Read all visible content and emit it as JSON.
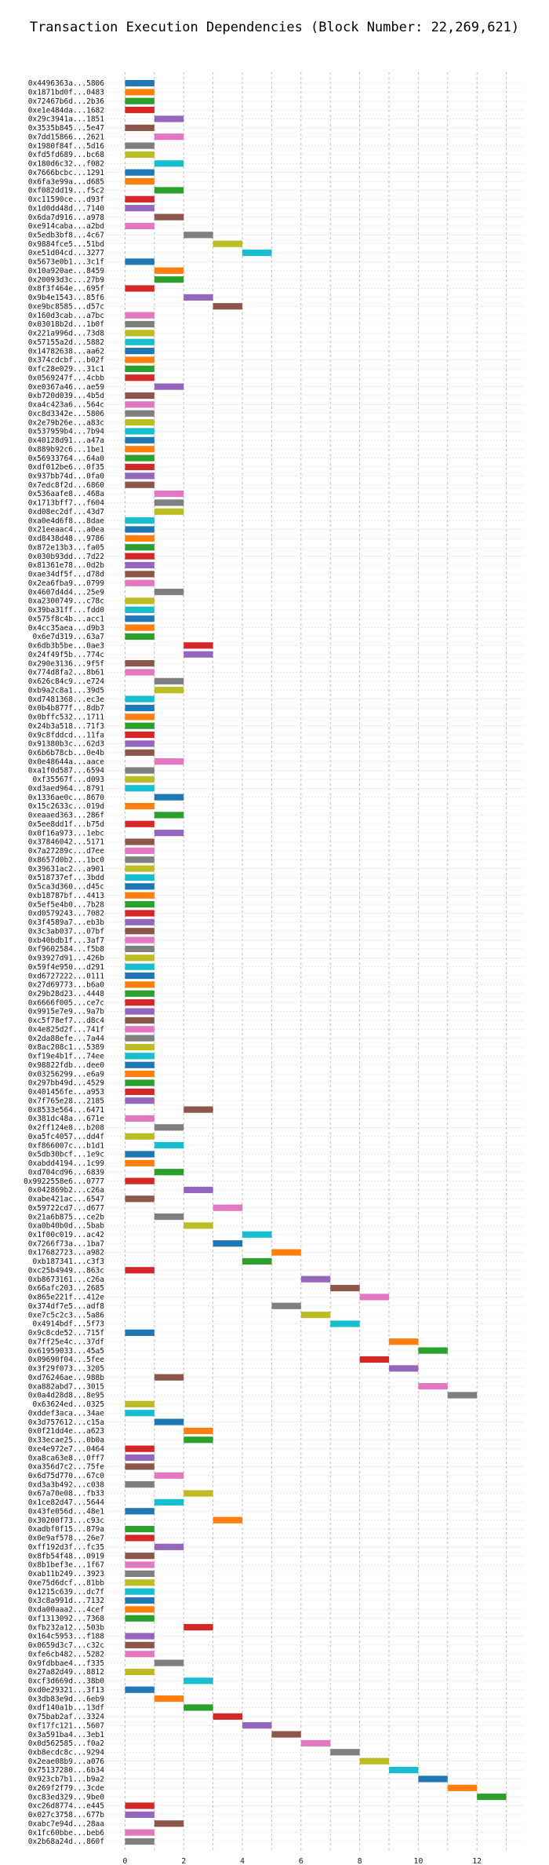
{
  "chart_data": {
    "type": "bar",
    "orientation": "horizontal-intervals",
    "title": "Transaction Execution Dependencies (Block Number: 22,269,621)",
    "xlabel": "",
    "ylabel": "",
    "xlim": [
      -0.6,
      13.6
    ],
    "xticks": [
      0,
      2,
      4,
      6,
      8,
      10,
      12
    ],
    "grid": true,
    "palette": [
      "#1f77b4",
      "#ff7f0e",
      "#2ca02c",
      "#d62728",
      "#9467bd",
      "#8c564b",
      "#e377c2",
      "#7f7f7f",
      "#bcbd22",
      "#17becf"
    ],
    "transactions": [
      {
        "hash": "0x4496363a...5806",
        "start": 0
      },
      {
        "hash": "0x1871bd0f...0483",
        "start": 0
      },
      {
        "hash": "0x72467b6d...2b36",
        "start": 0
      },
      {
        "hash": "0xe1e484da...1682",
        "start": 0
      },
      {
        "hash": "0x29c3941a...1851",
        "start": 1
      },
      {
        "hash": "0x3535b845...5e47",
        "start": 0
      },
      {
        "hash": "0x7dd15866...2621",
        "start": 1
      },
      {
        "hash": "0x1980f84f...5d16",
        "start": 0
      },
      {
        "hash": "0xfd5fd689...bc68",
        "start": 0
      },
      {
        "hash": "0x180d6c32...f082",
        "start": 1
      },
      {
        "hash": "0x7666bcbc...1291",
        "start": 0
      },
      {
        "hash": "0x6fa3e99a...d685",
        "start": 0
      },
      {
        "hash": "0xf082dd19...f5c2",
        "start": 1
      },
      {
        "hash": "0xc11590ce...d93f",
        "start": 0
      },
      {
        "hash": "0x1d0dd48d...7140",
        "start": 0
      },
      {
        "hash": "0x6da7d916...a978",
        "start": 1
      },
      {
        "hash": "0xe914caba...a2bd",
        "start": 0
      },
      {
        "hash": "0x5edb3bf8...4c67",
        "start": 2
      },
      {
        "hash": "0x9884fce5...51bd",
        "start": 3
      },
      {
        "hash": "0xe51d04cd...3277",
        "start": 4
      },
      {
        "hash": "0x5673e0b1...3c1f",
        "start": 0
      },
      {
        "hash": "0x10a920ae...8459",
        "start": 1
      },
      {
        "hash": "0x20093d3c...27b9",
        "start": 1
      },
      {
        "hash": "0x8f3f464e...695f",
        "start": 0
      },
      {
        "hash": "0x9b4e1543...85f6",
        "start": 2
      },
      {
        "hash": "0xe9bc8585...d57c",
        "start": 3
      },
      {
        "hash": "0x160d3cab...a7bc",
        "start": 0
      },
      {
        "hash": "0x03018b2d...1b0f",
        "start": 0
      },
      {
        "hash": "0x221a996d...73d8",
        "start": 0
      },
      {
        "hash": "0x57155a2d...5882",
        "start": 0
      },
      {
        "hash": "0x14782638...aa62",
        "start": 0
      },
      {
        "hash": "0x374cdcbf...b02f",
        "start": 0
      },
      {
        "hash": "0xfc28e029...31c1",
        "start": 0
      },
      {
        "hash": "0x0569247f...4cbb",
        "start": 0
      },
      {
        "hash": "0xe0367a46...ae59",
        "start": 1
      },
      {
        "hash": "0xb720d039...4b5d",
        "start": 0
      },
      {
        "hash": "0xa4c423a6...564c",
        "start": 0
      },
      {
        "hash": "0xc8d3342e...5806",
        "start": 0
      },
      {
        "hash": "0x2e79b26e...a83c",
        "start": 0
      },
      {
        "hash": "0x537959b4...7b94",
        "start": 0
      },
      {
        "hash": "0x40128d91...a47a",
        "start": 0
      },
      {
        "hash": "0x889b92c6...1be1",
        "start": 0
      },
      {
        "hash": "0x56933764...64a0",
        "start": 0
      },
      {
        "hash": "0xdf012be6...0f35",
        "start": 0
      },
      {
        "hash": "0x937bb74d...0fa0",
        "start": 0
      },
      {
        "hash": "0x7edc8f2d...6860",
        "start": 0
      },
      {
        "hash": "0x536aafe8...468a",
        "start": 1
      },
      {
        "hash": "0x1713bff7...f604",
        "start": 1
      },
      {
        "hash": "0xd08ec2df...43d7",
        "start": 1
      },
      {
        "hash": "0xa0e4d6f8...8dae",
        "start": 0
      },
      {
        "hash": "0x21eeaac4...a0ea",
        "start": 0
      },
      {
        "hash": "0xd8438d48...9786",
        "start": 0
      },
      {
        "hash": "0x872e13b3...fa05",
        "start": 0
      },
      {
        "hash": "0x030b93dd...7d22",
        "start": 0
      },
      {
        "hash": "0x81361e78...0d2b",
        "start": 0
      },
      {
        "hash": "0xae34df5f...d78d",
        "start": 0
      },
      {
        "hash": "0x2ea6fba9...0799",
        "start": 0
      },
      {
        "hash": "0x4607d4d4...25e9",
        "start": 1
      },
      {
        "hash": "0xa2300749...c78c",
        "start": 0
      },
      {
        "hash": "0x39ba31ff...fdd0",
        "start": 0
      },
      {
        "hash": "0x575f8c4b...acc1",
        "start": 0
      },
      {
        "hash": "0x4cc35aea...d9b3",
        "start": 0
      },
      {
        "hash": "0x6e7d319...63a7",
        "start": 0
      },
      {
        "hash": "0x6db3b5be...0ae3",
        "start": 2
      },
      {
        "hash": "0x24f49f5b...774c",
        "start": 2
      },
      {
        "hash": "0x290e3136...9f5f",
        "start": 0
      },
      {
        "hash": "0x774d8fa2...8b61",
        "start": 0
      },
      {
        "hash": "0x626c84c9...e724",
        "start": 1
      },
      {
        "hash": "0xb9a2c8a1...39d5",
        "start": 1
      },
      {
        "hash": "0xd7481368...ec3e",
        "start": 0
      },
      {
        "hash": "0x0b4b877f...8db7",
        "start": 0
      },
      {
        "hash": "0x0bffc532...1711",
        "start": 0
      },
      {
        "hash": "0x24b3a518...71f3",
        "start": 0
      },
      {
        "hash": "0x9c8fddcd...11fa",
        "start": 0
      },
      {
        "hash": "0x91380b3c...62d3",
        "start": 0
      },
      {
        "hash": "0x6b6b78cb...0e4b",
        "start": 0
      },
      {
        "hash": "0x0e48644a...aace",
        "start": 1
      },
      {
        "hash": "0xa1f0d587...6594",
        "start": 0
      },
      {
        "hash": "0xf35567f...d093",
        "start": 0
      },
      {
        "hash": "0xd3aed964...8791",
        "start": 0
      },
      {
        "hash": "0x1336ae0c...8670",
        "start": 1
      },
      {
        "hash": "0x15c2633c...019d",
        "start": 0
      },
      {
        "hash": "0xeaaed363...286f",
        "start": 1
      },
      {
        "hash": "0x5ee8dd1f...b75d",
        "start": 0
      },
      {
        "hash": "0x0f16a973...1ebc",
        "start": 1
      },
      {
        "hash": "0x37846042...5171",
        "start": 0
      },
      {
        "hash": "0x7a27289c...d7ee",
        "start": 0
      },
      {
        "hash": "0x8657d0b2...1bc0",
        "start": 0
      },
      {
        "hash": "0x39631ac2...a901",
        "start": 0
      },
      {
        "hash": "0x518737ef...3bdd",
        "start": 0
      },
      {
        "hash": "0x5ca3d360...d45c",
        "start": 0
      },
      {
        "hash": "0xb18787bf...4413",
        "start": 0
      },
      {
        "hash": "0x5ef5e4b0...7b28",
        "start": 0
      },
      {
        "hash": "0xd0579243...7082",
        "start": 0
      },
      {
        "hash": "0x3f4589a7...eb3b",
        "start": 0
      },
      {
        "hash": "0x3c3ab037...07bf",
        "start": 0
      },
      {
        "hash": "0xb40bdb1f...3af7",
        "start": 0
      },
      {
        "hash": "0xf9602584...f5b8",
        "start": 0
      },
      {
        "hash": "0x93927d91...426b",
        "start": 0
      },
      {
        "hash": "0x59f4e950...d291",
        "start": 0
      },
      {
        "hash": "0xd6727222...0111",
        "start": 0
      },
      {
        "hash": "0x27d69773...b6a0",
        "start": 0
      },
      {
        "hash": "0x29b28d23...4448",
        "start": 0
      },
      {
        "hash": "0x6666f005...ce7c",
        "start": 0
      },
      {
        "hash": "0x9915e7e9...9a7b",
        "start": 0
      },
      {
        "hash": "0xc5f78ef7...d8c4",
        "start": 0
      },
      {
        "hash": "0x4e825d2f...741f",
        "start": 0
      },
      {
        "hash": "0x2da88efe...7a44",
        "start": 0
      },
      {
        "hash": "0x8ac208c1...5389",
        "start": 0
      },
      {
        "hash": "0xf19e4b1f...74ee",
        "start": 0
      },
      {
        "hash": "0x98822fdb...dee0",
        "start": 0
      },
      {
        "hash": "0x03256299...e6a9",
        "start": 0
      },
      {
        "hash": "0x297bb49d...4529",
        "start": 0
      },
      {
        "hash": "0x401456fe...a953",
        "start": 0
      },
      {
        "hash": "0x7f765e28...2185",
        "start": 0
      },
      {
        "hash": "0x8533e564...6471",
        "start": 2
      },
      {
        "hash": "0x381dc48a...671e",
        "start": 0
      },
      {
        "hash": "0x2ff124e8...b208",
        "start": 1
      },
      {
        "hash": "0xa5fc4057...dd4f",
        "start": 0
      },
      {
        "hash": "0xf866007c...b1d1",
        "start": 1
      },
      {
        "hash": "0x5db30bcf...1e9c",
        "start": 0
      },
      {
        "hash": "0xabdd4194...1c99",
        "start": 0
      },
      {
        "hash": "0xd704cd96...6839",
        "start": 1
      },
      {
        "hash": "0x9922558e6...0777",
        "start": 0
      },
      {
        "hash": "0x042869b2...c26a",
        "start": 2
      },
      {
        "hash": "0xabe421ac...6547",
        "start": 0
      },
      {
        "hash": "0x59722cd7...d677",
        "start": 3
      },
      {
        "hash": "0x21a6b875...ce2b",
        "start": 1
      },
      {
        "hash": "0xa0b40b0d...5bab",
        "start": 2
      },
      {
        "hash": "0x1f00c019...ac42",
        "start": 4
      },
      {
        "hash": "0x7266f73a...1ba7",
        "start": 3
      },
      {
        "hash": "0x17682723...a982",
        "start": 5
      },
      {
        "hash": "0xb187341...c3f3",
        "start": 4
      },
      {
        "hash": "0xc25b4949...863c",
        "start": 0
      },
      {
        "hash": "0xb8673161...c26a",
        "start": 6
      },
      {
        "hash": "0x66afc203...2685",
        "start": 7
      },
      {
        "hash": "0x865e221f...412e",
        "start": 8
      },
      {
        "hash": "0x374df7e5...adf8",
        "start": 5
      },
      {
        "hash": "0xe7c5c2c3...5a86",
        "start": 6
      },
      {
        "hash": "0x4914bdf...5f73",
        "start": 7
      },
      {
        "hash": "0x9c8cde52...715f",
        "start": 0
      },
      {
        "hash": "0x7ff25e4c...37df",
        "start": 9
      },
      {
        "hash": "0x61959033...45a5",
        "start": 10
      },
      {
        "hash": "0x09690f04...5fee",
        "start": 8
      },
      {
        "hash": "0x3f29f073...3205",
        "start": 9
      },
      {
        "hash": "0xd76246ae...988b",
        "start": 1
      },
      {
        "hash": "0xa882abd7...3015",
        "start": 10
      },
      {
        "hash": "0x0a4d28d8...8e95",
        "start": 11
      },
      {
        "hash": "0x63624ed...0325",
        "start": 0
      },
      {
        "hash": "0xddef3aca...34ae",
        "start": 0
      },
      {
        "hash": "0x3d757612...c15a",
        "start": 1
      },
      {
        "hash": "0x0f21dd4e...a623",
        "start": 2
      },
      {
        "hash": "0x33ecae25...0b0a",
        "start": 2
      },
      {
        "hash": "0xe4e972e7...0464",
        "start": 0
      },
      {
        "hash": "0xa8ca63e8...0ff7",
        "start": 0
      },
      {
        "hash": "0xa356d7c2...75fe",
        "start": 0
      },
      {
        "hash": "0x6d75d770...67c0",
        "start": 1
      },
      {
        "hash": "0xd3a3b492...c038",
        "start": 0
      },
      {
        "hash": "0x67a70e08...fb33",
        "start": 2
      },
      {
        "hash": "0x1ce82d47...5644",
        "start": 1
      },
      {
        "hash": "0x43fe056d...48e1",
        "start": 0
      },
      {
        "hash": "0x30200f73...c93c",
        "start": 3
      },
      {
        "hash": "0xadbf0f15...879a",
        "start": 0
      },
      {
        "hash": "0x0e9af578...26e7",
        "start": 0
      },
      {
        "hash": "0xff192d3f...fc35",
        "start": 1
      },
      {
        "hash": "0x8fb54f48...0919",
        "start": 0
      },
      {
        "hash": "0x8b1bef3e...1f67",
        "start": 0
      },
      {
        "hash": "0xab11b249...3923",
        "start": 0
      },
      {
        "hash": "0xe75d6dcf...81bb",
        "start": 0
      },
      {
        "hash": "0x1215c639...dc7f",
        "start": 0
      },
      {
        "hash": "0x3c8a991d...7132",
        "start": 0
      },
      {
        "hash": "0xda00aaa2...4cef",
        "start": 0
      },
      {
        "hash": "0xf1313092...7368",
        "start": 0
      },
      {
        "hash": "0xfb232a12...503b",
        "start": 2
      },
      {
        "hash": "0x164c5953...f188",
        "start": 0
      },
      {
        "hash": "0x0659d3c7...c32c",
        "start": 0
      },
      {
        "hash": "0xfe6cb482...5282",
        "start": 0
      },
      {
        "hash": "0x9fdbbae4...f335",
        "start": 1
      },
      {
        "hash": "0x27a82d49...8812",
        "start": 0
      },
      {
        "hash": "0xcf3d669d...38b0",
        "start": 2
      },
      {
        "hash": "0xd0e29321...3f13",
        "start": 0
      },
      {
        "hash": "0x3db83e9d...6eb9",
        "start": 1
      },
      {
        "hash": "0xdf140a1b...13df",
        "start": 2
      },
      {
        "hash": "0x75bab2af...3324",
        "start": 3
      },
      {
        "hash": "0xf17fc121...5607",
        "start": 4
      },
      {
        "hash": "0x3a591ba4...3eb1",
        "start": 5
      },
      {
        "hash": "0x0d562585...f0a2",
        "start": 6
      },
      {
        "hash": "0xb8ecdc8c...9294",
        "start": 7
      },
      {
        "hash": "0x2eae08b9...a076",
        "start": 8
      },
      {
        "hash": "0x75137280...6b34",
        "start": 9
      },
      {
        "hash": "0x923cb7b1...b9a2",
        "start": 10
      },
      {
        "hash": "0x269f2f79...3cde",
        "start": 11
      },
      {
        "hash": "0xc83ed329...9be0",
        "start": 12
      },
      {
        "hash": "0xc26d8774...e445",
        "start": 0
      },
      {
        "hash": "0x027c3758...677b",
        "start": 0
      },
      {
        "hash": "0xabc7e94d...28aa",
        "start": 1
      },
      {
        "hash": "0x1fc60bbe...beb6",
        "start": 0
      },
      {
        "hash": "0x2b68a24d...860f",
        "start": 0
      }
    ]
  }
}
